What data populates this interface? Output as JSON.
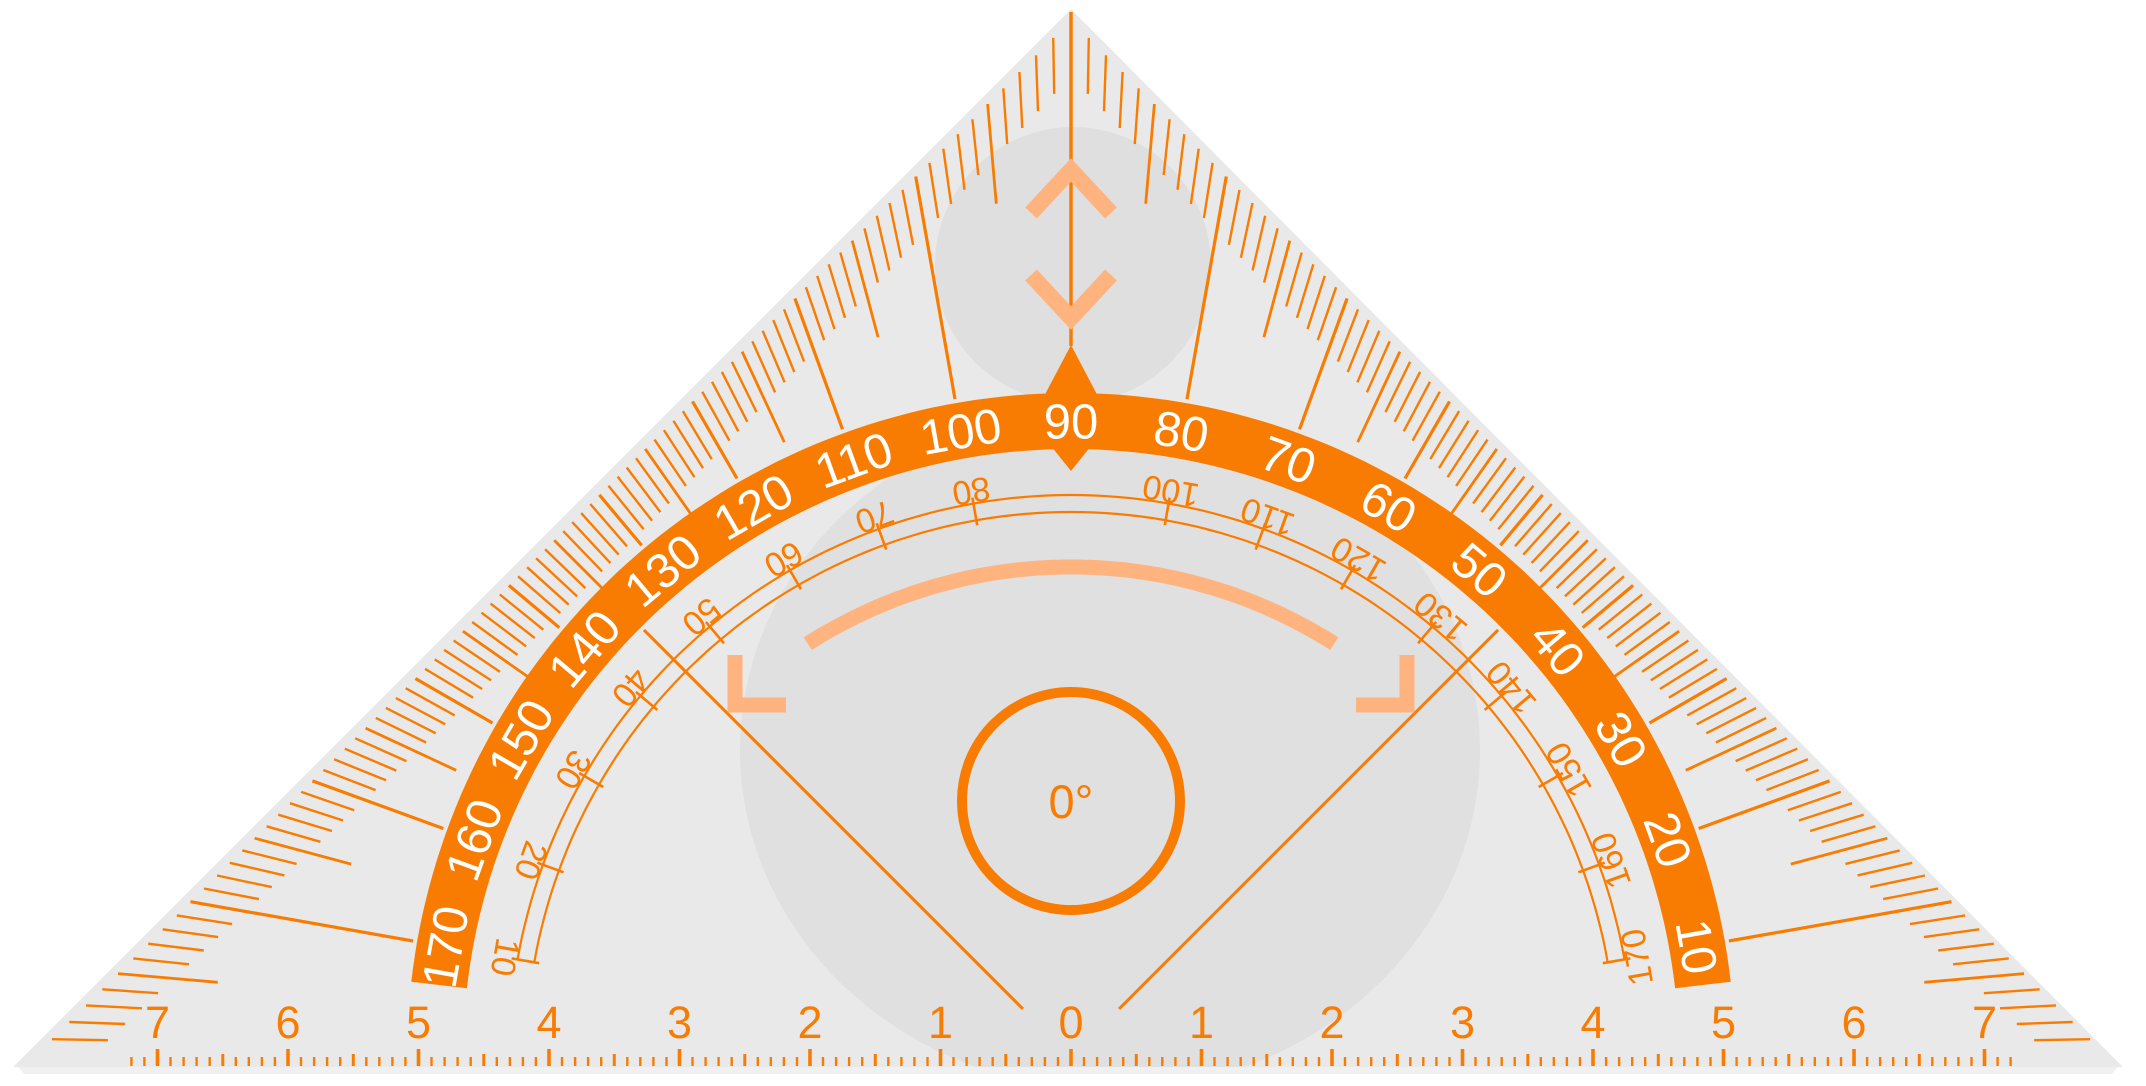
{
  "tool": {
    "type": "set-square-protractor",
    "shape": "right-isosceles-triangle"
  },
  "colors": {
    "orange": "#F97C02",
    "peach": "#FFB37E",
    "plastic": "#E9E9E9",
    "bandText": "#FFFFFF",
    "page": "#FFFFFF"
  },
  "protractor": {
    "outer_scale_labels": [
      "10",
      "20",
      "30",
      "40",
      "50",
      "60",
      "70",
      "80",
      "90",
      "100",
      "110",
      "120",
      "130",
      "140",
      "150",
      "160",
      "170"
    ],
    "inner_scale_labels": [
      "10",
      "20",
      "30",
      "40",
      "50",
      "60",
      "70",
      "80",
      "100",
      "110",
      "120",
      "130",
      "140",
      "150",
      "160",
      "170"
    ],
    "center_label": "0°"
  },
  "ruler": {
    "labels": [
      "7",
      "6",
      "5",
      "4",
      "3",
      "2",
      "1",
      "0",
      "1",
      "2",
      "3",
      "4",
      "5",
      "6",
      "7"
    ]
  }
}
